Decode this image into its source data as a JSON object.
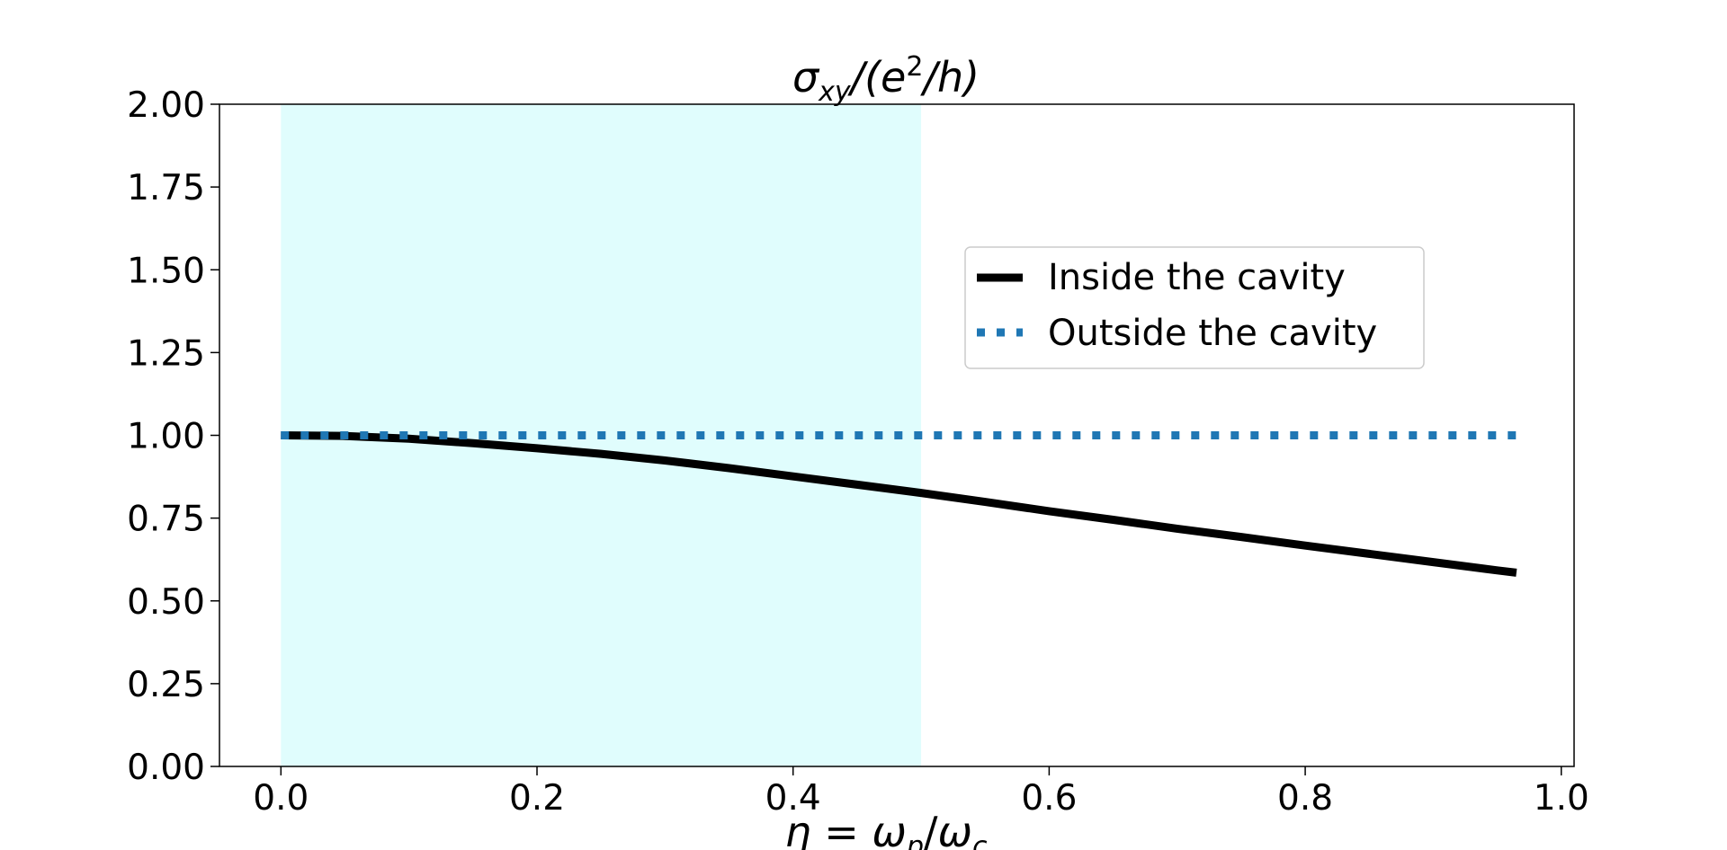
{
  "chart_data": {
    "type": "line",
    "title": "σxy/(e²/h)",
    "title_parts": {
      "base": "σ",
      "sub": "xy",
      "mid": "/(e",
      "sup": "2",
      "end": "/h)"
    },
    "xlabel": "η = ωp/ωc",
    "xlabel_parts": {
      "a": "η",
      "eq": " = ",
      "b": "ω",
      "b_sub": "p",
      "slash": "/",
      "c": "ω",
      "c_sub": "c"
    },
    "xlim": [
      -0.048,
      1.01
    ],
    "ylim": [
      0.0,
      2.0
    ],
    "x_ticks": [
      "0.0",
      "0.2",
      "0.4",
      "0.6",
      "0.8",
      "1.0"
    ],
    "x_tick_values": [
      0.0,
      0.2,
      0.4,
      0.6,
      0.8,
      1.0
    ],
    "y_ticks": [
      "0.00",
      "0.25",
      "0.50",
      "0.75",
      "1.00",
      "1.25",
      "1.50",
      "1.75",
      "2.00"
    ],
    "y_tick_values": [
      0.0,
      0.25,
      0.5,
      0.75,
      1.0,
      1.25,
      1.5,
      1.75,
      2.0
    ],
    "shaded_region": {
      "x": [
        0.0,
        0.5
      ],
      "color": "#e0fdfd"
    },
    "legend_placement": "upper-right",
    "grid": false,
    "series": [
      {
        "name": "Inside the cavity",
        "style": "solid",
        "color": "#000000",
        "x": [
          0.0,
          0.05,
          0.1,
          0.15,
          0.2,
          0.25,
          0.3,
          0.35,
          0.4,
          0.45,
          0.5,
          0.55,
          0.6,
          0.65,
          0.7,
          0.75,
          0.8,
          0.85,
          0.9,
          0.95,
          0.965
        ],
        "y": [
          1.0,
          0.998,
          0.99,
          0.976,
          0.961,
          0.944,
          0.924,
          0.901,
          0.876,
          0.851,
          0.826,
          0.799,
          0.771,
          0.745,
          0.718,
          0.693,
          0.667,
          0.642,
          0.617,
          0.592,
          0.585
        ]
      },
      {
        "name": "Outside the cavity",
        "style": "dotted",
        "color": "#1f77b4",
        "x": [
          0.0,
          0.965
        ],
        "y": [
          1.0,
          1.0
        ]
      }
    ]
  }
}
